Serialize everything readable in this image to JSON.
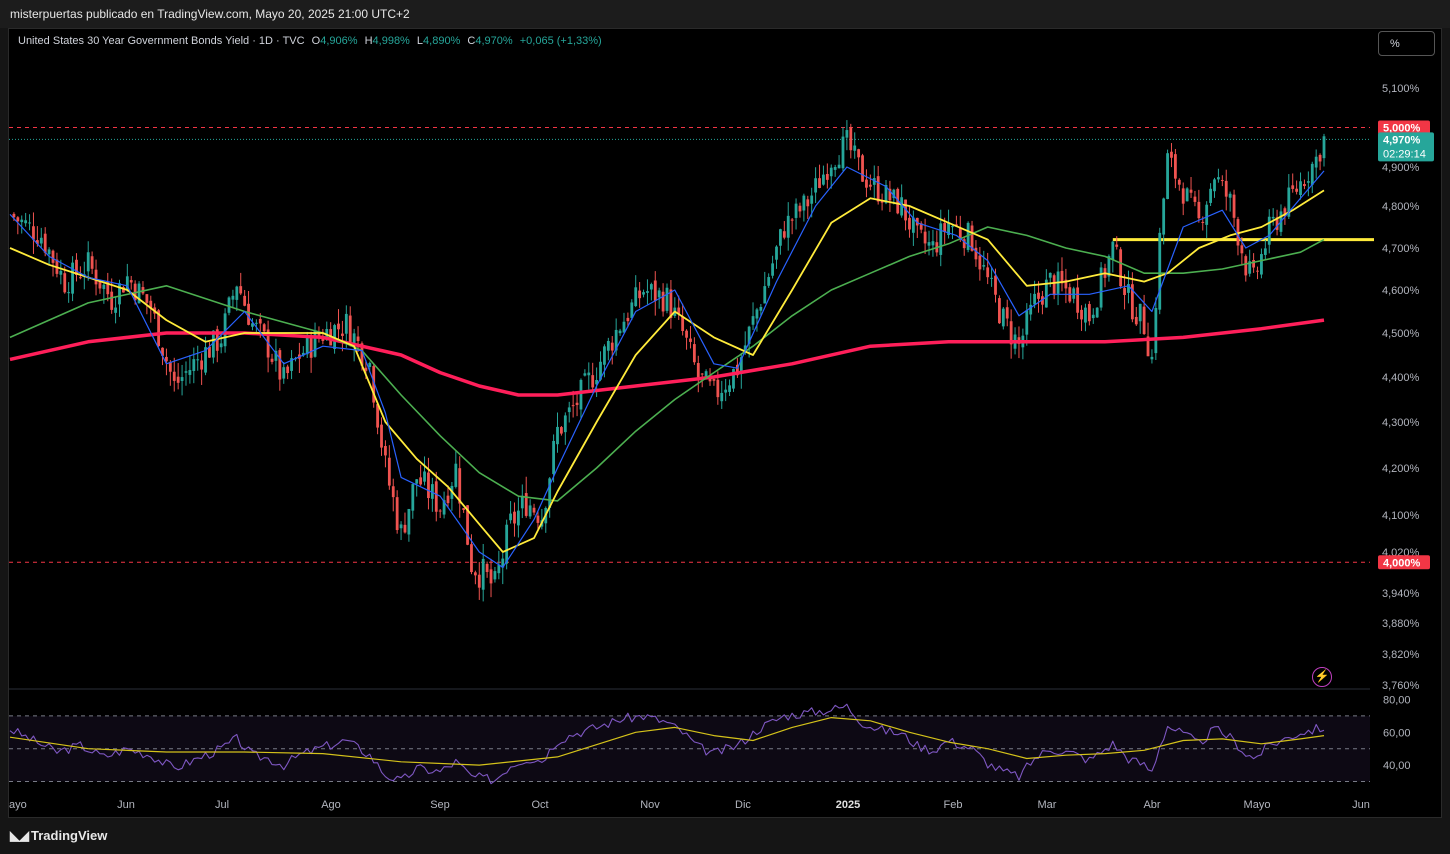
{
  "header": {
    "published_line": "misterpuertas publicado en TradingView.com, Mayo 20, 2025 21:00 UTC+2"
  },
  "legend": {
    "symbol": "United States 30 Year Government Bonds Yield · 1D · TVC",
    "o_key": "O",
    "o_val": "4,906%",
    "h_key": "H",
    "h_val": "4,998%",
    "l_key": "L",
    "l_val": "4,890%",
    "c_key": "C",
    "c_val": "4,970%",
    "change": "+0,065 (+1,33%)"
  },
  "controls": {
    "scale_button": "%"
  },
  "price_labels": {
    "resistance": "5,000%",
    "last": "4,970%",
    "countdown": "02:29:14",
    "support": "4,000%"
  },
  "footer": {
    "brand": "TradingView"
  },
  "colors": {
    "up": "#26a69a",
    "down": "#ef5350",
    "ma_fast": "#2962ff",
    "ma_yellow": "#ffeb3b",
    "ma_green": "#4caf50",
    "ma_long": "#ff1f5a",
    "rsi": "#7e57c2",
    "rsi_ma": "#d4c21a",
    "level": "#f23645"
  },
  "icons": {
    "alert": "lightning-icon",
    "logo": "tradingview-logo-icon"
  },
  "chart_data": {
    "type": "candlestick",
    "title": "United States 30 Year Government Bonds Yield · 1D · TVC",
    "y_ticks": [
      "5,100%",
      "4,900%",
      "4,800%",
      "4,700%",
      "4,600%",
      "4,500%",
      "4,400%",
      "4,300%",
      "4,200%",
      "4,100%",
      "4,020%",
      "3,940%",
      "3,880%",
      "3,820%",
      "3,760%"
    ],
    "x_ticks": [
      "ayo",
      "Jun",
      "Jul",
      "Ago",
      "Sep",
      "Oct",
      "Nov",
      "Dic",
      "2025",
      "Feb",
      "Mar",
      "Abr",
      "Mayo",
      "Jun"
    ],
    "horizontal_levels": [
      5.0,
      4.0,
      4.72
    ],
    "close_path": [
      [
        0,
        4.78
      ],
      [
        8,
        4.73
      ],
      [
        14,
        4.62
      ],
      [
        20,
        4.66
      ],
      [
        26,
        4.58
      ],
      [
        30,
        4.63
      ],
      [
        36,
        4.56
      ],
      [
        42,
        4.38
      ],
      [
        48,
        4.44
      ],
      [
        54,
        4.49
      ],
      [
        58,
        4.62
      ],
      [
        62,
        4.52
      ],
      [
        66,
        4.47
      ],
      [
        70,
        4.39
      ],
      [
        74,
        4.45
      ],
      [
        80,
        4.5
      ],
      [
        86,
        4.52
      ],
      [
        92,
        4.43
      ],
      [
        96,
        4.2
      ],
      [
        100,
        4.06
      ],
      [
        104,
        4.18
      ],
      [
        110,
        4.12
      ],
      [
        114,
        4.2
      ],
      [
        118,
        4.0
      ],
      [
        124,
        3.95
      ],
      [
        128,
        4.08
      ],
      [
        132,
        4.13
      ],
      [
        136,
        4.1
      ],
      [
        140,
        4.28
      ],
      [
        144,
        4.33
      ],
      [
        150,
        4.42
      ],
      [
        156,
        4.52
      ],
      [
        162,
        4.6
      ],
      [
        168,
        4.58
      ],
      [
        172,
        4.5
      ],
      [
        176,
        4.4
      ],
      [
        180,
        4.36
      ],
      [
        186,
        4.42
      ],
      [
        192,
        4.58
      ],
      [
        198,
        4.75
      ],
      [
        204,
        4.81
      ],
      [
        210,
        4.92
      ],
      [
        214,
        4.96
      ],
      [
        218,
        4.88
      ],
      [
        222,
        4.84
      ],
      [
        228,
        4.8
      ],
      [
        232,
        4.72
      ],
      [
        236,
        4.7
      ],
      [
        240,
        4.76
      ],
      [
        246,
        4.72
      ],
      [
        250,
        4.62
      ],
      [
        254,
        4.53
      ],
      [
        258,
        4.47
      ],
      [
        262,
        4.57
      ],
      [
        266,
        4.62
      ],
      [
        272,
        4.59
      ],
      [
        276,
        4.54
      ],
      [
        282,
        4.7
      ],
      [
        286,
        4.58
      ],
      [
        290,
        4.52
      ],
      [
        292,
        4.44
      ],
      [
        294,
        4.72
      ],
      [
        296,
        4.92
      ],
      [
        300,
        4.84
      ],
      [
        304,
        4.76
      ],
      [
        308,
        4.88
      ],
      [
        312,
        4.81
      ],
      [
        316,
        4.66
      ],
      [
        318,
        4.62
      ],
      [
        322,
        4.74
      ],
      [
        326,
        4.8
      ],
      [
        330,
        4.86
      ],
      [
        334,
        4.92
      ],
      [
        336,
        4.97
      ]
    ],
    "ma_levels": {
      "ma_fast": [
        [
          0,
          4.78
        ],
        [
          10,
          4.68
        ],
        [
          20,
          4.63
        ],
        [
          30,
          4.61
        ],
        [
          40,
          4.43
        ],
        [
          50,
          4.46
        ],
        [
          60,
          4.55
        ],
        [
          70,
          4.43
        ],
        [
          80,
          4.47
        ],
        [
          90,
          4.46
        ],
        [
          96,
          4.32
        ],
        [
          100,
          4.18
        ],
        [
          110,
          4.14
        ],
        [
          120,
          4.02
        ],
        [
          126,
          3.99
        ],
        [
          134,
          4.09
        ],
        [
          140,
          4.2
        ],
        [
          150,
          4.38
        ],
        [
          160,
          4.55
        ],
        [
          170,
          4.6
        ],
        [
          180,
          4.43
        ],
        [
          186,
          4.42
        ],
        [
          196,
          4.62
        ],
        [
          206,
          4.8
        ],
        [
          214,
          4.9
        ],
        [
          224,
          4.85
        ],
        [
          232,
          4.76
        ],
        [
          242,
          4.73
        ],
        [
          250,
          4.67
        ],
        [
          258,
          4.54
        ],
        [
          266,
          4.59
        ],
        [
          276,
          4.59
        ],
        [
          286,
          4.61
        ],
        [
          292,
          4.55
        ],
        [
          300,
          4.75
        ],
        [
          310,
          4.79
        ],
        [
          316,
          4.7
        ],
        [
          322,
          4.73
        ],
        [
          330,
          4.82
        ],
        [
          336,
          4.89
        ]
      ],
      "ma_yellow": [
        [
          0,
          4.7
        ],
        [
          10,
          4.66
        ],
        [
          20,
          4.63
        ],
        [
          30,
          4.6
        ],
        [
          40,
          4.53
        ],
        [
          50,
          4.48
        ],
        [
          60,
          4.5
        ],
        [
          70,
          4.5
        ],
        [
          80,
          4.5
        ],
        [
          88,
          4.47
        ],
        [
          96,
          4.3
        ],
        [
          104,
          4.22
        ],
        [
          112,
          4.16
        ],
        [
          120,
          4.08
        ],
        [
          126,
          4.02
        ],
        [
          134,
          4.05
        ],
        [
          140,
          4.15
        ],
        [
          150,
          4.3
        ],
        [
          160,
          4.45
        ],
        [
          170,
          4.55
        ],
        [
          180,
          4.49
        ],
        [
          190,
          4.45
        ],
        [
          200,
          4.6
        ],
        [
          210,
          4.76
        ],
        [
          220,
          4.82
        ],
        [
          230,
          4.8
        ],
        [
          240,
          4.76
        ],
        [
          250,
          4.72
        ],
        [
          260,
          4.61
        ],
        [
          270,
          4.62
        ],
        [
          280,
          4.64
        ],
        [
          290,
          4.62
        ],
        [
          296,
          4.64
        ],
        [
          304,
          4.7
        ],
        [
          312,
          4.73
        ],
        [
          320,
          4.75
        ],
        [
          328,
          4.79
        ],
        [
          336,
          4.84
        ]
      ],
      "ma_green": [
        [
          0,
          4.49
        ],
        [
          20,
          4.57
        ],
        [
          40,
          4.61
        ],
        [
          60,
          4.55
        ],
        [
          80,
          4.5
        ],
        [
          90,
          4.46
        ],
        [
          100,
          4.36
        ],
        [
          110,
          4.27
        ],
        [
          120,
          4.19
        ],
        [
          130,
          4.14
        ],
        [
          140,
          4.13
        ],
        [
          150,
          4.2
        ],
        [
          160,
          4.28
        ],
        [
          170,
          4.35
        ],
        [
          180,
          4.41
        ],
        [
          190,
          4.47
        ],
        [
          200,
          4.54
        ],
        [
          210,
          4.6
        ],
        [
          220,
          4.64
        ],
        [
          230,
          4.68
        ],
        [
          240,
          4.71
        ],
        [
          250,
          4.75
        ],
        [
          260,
          4.73
        ],
        [
          270,
          4.7
        ],
        [
          280,
          4.68
        ],
        [
          290,
          4.64
        ],
        [
          300,
          4.64
        ],
        [
          310,
          4.65
        ],
        [
          320,
          4.67
        ],
        [
          330,
          4.69
        ],
        [
          336,
          4.72
        ]
      ],
      "ma_long": [
        [
          0,
          4.44
        ],
        [
          20,
          4.48
        ],
        [
          40,
          4.5
        ],
        [
          60,
          4.5
        ],
        [
          80,
          4.49
        ],
        [
          100,
          4.45
        ],
        [
          110,
          4.41
        ],
        [
          120,
          4.38
        ],
        [
          130,
          4.36
        ],
        [
          140,
          4.36
        ],
        [
          160,
          4.38
        ],
        [
          180,
          4.4
        ],
        [
          200,
          4.43
        ],
        [
          220,
          4.47
        ],
        [
          240,
          4.48
        ],
        [
          260,
          4.48
        ],
        [
          280,
          4.48
        ],
        [
          300,
          4.49
        ],
        [
          320,
          4.51
        ],
        [
          336,
          4.53
        ]
      ]
    },
    "rsi": {
      "ticks": [
        "80,00",
        "60,00",
        "40,00"
      ],
      "upper_band": 70,
      "middle": 50,
      "lower_band": 30,
      "points": [
        [
          0,
          62
        ],
        [
          6,
          55
        ],
        [
          12,
          48
        ],
        [
          18,
          52
        ],
        [
          24,
          45
        ],
        [
          30,
          50
        ],
        [
          36,
          46
        ],
        [
          42,
          38
        ],
        [
          48,
          44
        ],
        [
          54,
          50
        ],
        [
          58,
          56
        ],
        [
          62,
          46
        ],
        [
          66,
          44
        ],
        [
          70,
          40
        ],
        [
          74,
          46
        ],
        [
          80,
          51
        ],
        [
          86,
          55
        ],
        [
          92,
          46
        ],
        [
          96,
          34
        ],
        [
          100,
          30
        ],
        [
          104,
          38
        ],
        [
          110,
          36
        ],
        [
          114,
          42
        ],
        [
          118,
          33
        ],
        [
          124,
          31
        ],
        [
          128,
          40
        ],
        [
          132,
          44
        ],
        [
          136,
          43
        ],
        [
          140,
          55
        ],
        [
          144,
          59
        ],
        [
          150,
          63
        ],
        [
          156,
          68
        ],
        [
          162,
          70
        ],
        [
          168,
          66
        ],
        [
          172,
          60
        ],
        [
          176,
          51
        ],
        [
          180,
          47
        ],
        [
          186,
          52
        ],
        [
          192,
          63
        ],
        [
          198,
          70
        ],
        [
          204,
          72
        ],
        [
          210,
          74
        ],
        [
          214,
          76
        ],
        [
          218,
          66
        ],
        [
          222,
          62
        ],
        [
          228,
          59
        ],
        [
          232,
          52
        ],
        [
          236,
          49
        ],
        [
          240,
          55
        ],
        [
          246,
          50
        ],
        [
          250,
          41
        ],
        [
          254,
          36
        ],
        [
          258,
          33
        ],
        [
          262,
          44
        ],
        [
          266,
          50
        ],
        [
          272,
          47
        ],
        [
          276,
          43
        ],
        [
          282,
          53
        ],
        [
          286,
          44
        ],
        [
          290,
          40
        ],
        [
          292,
          36
        ],
        [
          294,
          52
        ],
        [
          296,
          64
        ],
        [
          300,
          59
        ],
        [
          304,
          53
        ],
        [
          308,
          62
        ],
        [
          312,
          57
        ],
        [
          316,
          47
        ],
        [
          318,
          44
        ],
        [
          322,
          52
        ],
        [
          326,
          56
        ],
        [
          330,
          60
        ],
        [
          334,
          62
        ],
        [
          336,
          63
        ]
      ],
      "ma_points": [
        [
          0,
          57
        ],
        [
          20,
          50
        ],
        [
          40,
          48
        ],
        [
          60,
          48
        ],
        [
          80,
          47
        ],
        [
          100,
          42
        ],
        [
          120,
          40
        ],
        [
          140,
          45
        ],
        [
          160,
          60
        ],
        [
          170,
          63
        ],
        [
          180,
          58
        ],
        [
          190,
          55
        ],
        [
          200,
          63
        ],
        [
          210,
          69
        ],
        [
          220,
          67
        ],
        [
          230,
          60
        ],
        [
          240,
          54
        ],
        [
          250,
          50
        ],
        [
          260,
          44
        ],
        [
          270,
          46
        ],
        [
          280,
          47
        ],
        [
          290,
          49
        ],
        [
          300,
          55
        ],
        [
          310,
          56
        ],
        [
          320,
          53
        ],
        [
          330,
          56
        ],
        [
          336,
          58
        ]
      ]
    }
  }
}
